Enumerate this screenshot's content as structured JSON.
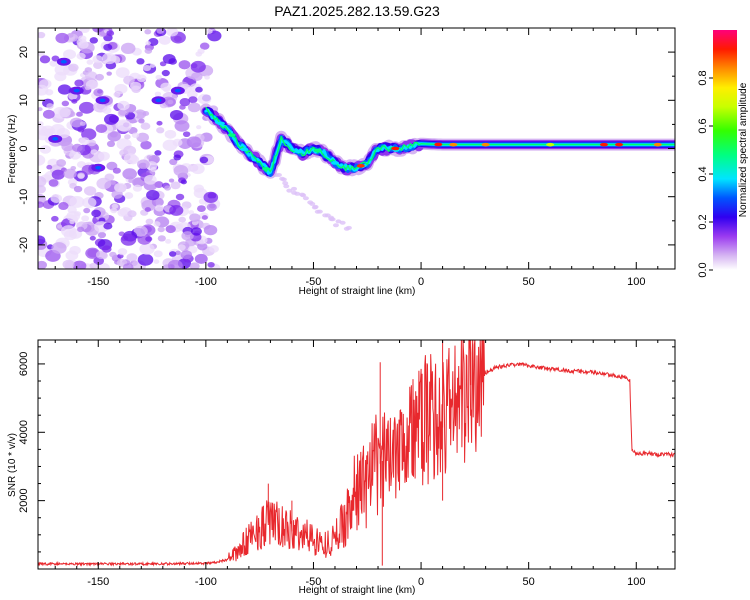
{
  "title": "PAZ1.2025.282.13.59.G23",
  "chart_data": [
    {
      "type": "heatmap",
      "name": "spectrogram",
      "xlabel": "Height of straight line (km)",
      "ylabel": "Frequency (Hz)",
      "xlim": [
        -178,
        118
      ],
      "ylim": [
        -25,
        25
      ],
      "xticks": [
        -150,
        -100,
        -50,
        0,
        50,
        100
      ],
      "xtick_labels": [
        "-150",
        "-100",
        "-50",
        "0",
        "50",
        "100"
      ],
      "yticks": [
        -20,
        -10,
        0,
        10,
        20
      ],
      "ytick_labels": [
        "-20",
        "-10",
        "0",
        "10",
        "20"
      ],
      "ridge_frequency": {
        "x": [
          -100,
          -95,
          -90,
          -85,
          -80,
          -75,
          -70,
          -65,
          -60,
          -55,
          -50,
          -45,
          -40,
          -35,
          -30,
          -25,
          -20,
          -15,
          -10,
          -5,
          0,
          10,
          20,
          40,
          60,
          80,
          100,
          118
        ],
        "y": [
          8,
          6,
          4,
          1,
          -1,
          -3,
          -5,
          2,
          0,
          -1,
          0,
          -1,
          -3,
          -4,
          -4,
          -3,
          0,
          0,
          0,
          0.5,
          1,
          0.8,
          0.8,
          0.8,
          0.8,
          0.8,
          0.8,
          0.8
        ]
      },
      "colorbar": {
        "label": "Normalized spectral amplitude",
        "range": [
          0,
          1
        ],
        "ticks": [
          0.0,
          0.2,
          0.4,
          0.6,
          0.8
        ],
        "tick_labels": [
          "0.0",
          "0.2",
          "0.4",
          "0.6",
          "0.8"
        ]
      }
    },
    {
      "type": "line",
      "name": "snr",
      "xlabel": "Height of straight line (km)",
      "ylabel": "SNR (10 * v/v)",
      "xlim": [
        -178,
        118
      ],
      "ylim": [
        0,
        6700
      ],
      "xticks": [
        -150,
        -100,
        -50,
        0,
        50,
        100
      ],
      "xtick_labels": [
        "-150",
        "-100",
        "-50",
        "0",
        "50",
        "100"
      ],
      "yticks": [
        2000,
        4000,
        6000
      ],
      "ytick_labels": [
        "2000",
        "4000",
        "6000"
      ],
      "series": [
        {
          "name": "SNR",
          "color": "#e8282d",
          "x": [
            -178,
            -150,
            -120,
            -100,
            -95,
            -90,
            -85,
            -80,
            -75,
            -70,
            -65,
            -60,
            -55,
            -50,
            -45,
            -40,
            -35,
            -30,
            -25,
            -20,
            -15,
            -10,
            -5,
            0,
            5,
            10,
            15,
            20,
            25,
            30,
            35,
            40,
            45,
            50,
            55,
            60,
            70,
            80,
            90,
            95,
            97,
            98,
            100,
            105,
            110,
            118
          ],
          "y": [
            150,
            150,
            150,
            170,
            200,
            280,
            500,
            900,
            1200,
            1400,
            1200,
            1100,
            1000,
            900,
            700,
            900,
            1500,
            2300,
            2600,
            3000,
            3400,
            3900,
            4000,
            4200,
            4500,
            4300,
            5000,
            5200,
            5500,
            5750,
            5900,
            5950,
            6000,
            5950,
            5900,
            5850,
            5800,
            5750,
            5650,
            5600,
            5500,
            3450,
            3400,
            3380,
            3350,
            3350
          ],
          "spikes": [
            {
              "x": -71,
              "y": 2500
            },
            {
              "x": -60,
              "y": 2000
            },
            {
              "x": -19,
              "y": 6050
            },
            {
              "x": -18,
              "y": 100
            },
            {
              "x": 10,
              "y": 6700
            },
            {
              "x": 10,
              "y": 2000
            },
            {
              "x": 23,
              "y": 6700
            }
          ]
        }
      ]
    }
  ]
}
